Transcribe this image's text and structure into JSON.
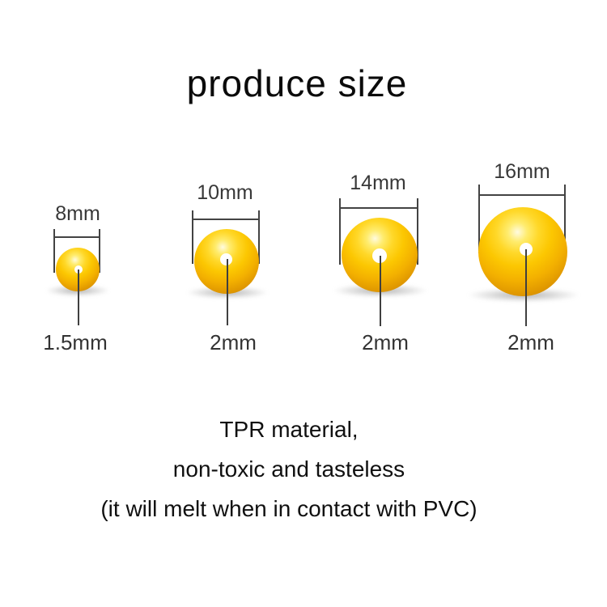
{
  "title": "produce size",
  "diagram": {
    "beads": [
      {
        "diameter_label": "8mm",
        "hole_label": "1.5mm"
      },
      {
        "diameter_label": "10mm",
        "hole_label": "2mm"
      },
      {
        "diameter_label": "14mm",
        "hole_label": "2mm"
      },
      {
        "diameter_label": "16mm",
        "hole_label": "2mm"
      }
    ]
  },
  "description": {
    "lines": [
      "TPR material,",
      "non-toxic and tasteless",
      "(it will melt when in contact with PVC)"
    ]
  },
  "colors": {
    "bead_yellow": "#fcc701",
    "bead_highlight": "#fffbe0",
    "bead_edge": "#bd7c06",
    "measure_line_gray": "#434343",
    "label_gray": "#383838",
    "text_black": "#101010",
    "background": "#ffffff"
  }
}
